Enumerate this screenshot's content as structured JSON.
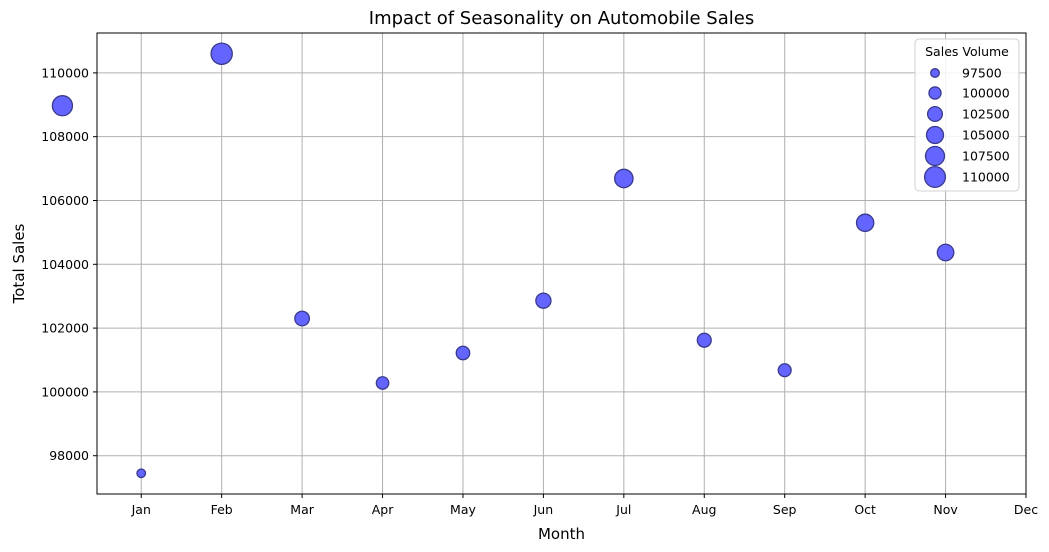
{
  "chart_data": {
    "type": "scatter",
    "title": "Impact of Seasonality on Automobile Sales",
    "xlabel": "Month",
    "ylabel": "Total Sales",
    "x_ticks": [
      "Jan",
      "Feb",
      "Mar",
      "Apr",
      "May",
      "Jun",
      "Jul",
      "Aug",
      "Sep",
      "Oct",
      "Nov",
      "Dec"
    ],
    "y_ticks": [
      98000,
      100000,
      102000,
      104000,
      106000,
      108000,
      110000
    ],
    "ylim": [
      96800,
      111250
    ],
    "xlim": [
      -0.55,
      11.0
    ],
    "grid": true,
    "marker_color": "#6464ff",
    "marker_edge_color": "#3a3a8c",
    "points": [
      {
        "x": -0.98,
        "y": 108970
      },
      {
        "x": 0,
        "y": 97450
      },
      {
        "x": 1,
        "y": 110600
      },
      {
        "x": 2,
        "y": 102300
      },
      {
        "x": 3,
        "y": 100280
      },
      {
        "x": 4,
        "y": 101220
      },
      {
        "x": 5,
        "y": 102860
      },
      {
        "x": 6,
        "y": 106690
      },
      {
        "x": 7,
        "y": 101620
      },
      {
        "x": 8,
        "y": 100680
      },
      {
        "x": 9,
        "y": 105300
      },
      {
        "x": 10,
        "y": 104370
      }
    ],
    "legend": {
      "title": "Sales Volume",
      "position": "top-right",
      "entries": [
        "97500",
        "100000",
        "102500",
        "105000",
        "107500",
        "110000"
      ],
      "entry_values": [
        97500,
        100000,
        102500,
        105000,
        107500,
        110000
      ]
    }
  }
}
